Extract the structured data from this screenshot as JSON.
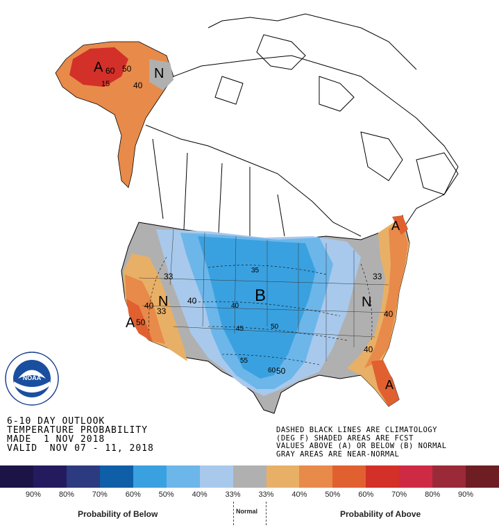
{
  "title": {
    "line1": "6-10 DAY OUTLOOK",
    "line2": "TEMPERATURE PROBABILITY",
    "line3": "MADE  1 NOV 2018",
    "line4": "VALID  NOV 07 - 11, 2018"
  },
  "notes": {
    "line1": "DASHED BLACK LINES ARE CLIMATOLOGY",
    "line2": "(DEG F) SHADED AREAS ARE FCST",
    "line3": "VALUES ABOVE (A) OR BELOW (B) NORMAL",
    "line4": "GRAY AREAS ARE NEAR-NORMAL"
  },
  "logo": {
    "text": "NOAA",
    "ring_text": "NATIONAL OCEANIC AND ATMOSPHERIC ADMINISTRATION · U.S. DEPARTMENT OF COMMERCE"
  },
  "map_labels": {
    "alaska_a": "A",
    "alaska_60": "60",
    "alaska_50": "50",
    "alaska_40": "40",
    "yukon_n": "N",
    "central_b": "B",
    "west_n": "N",
    "calif_a": "A",
    "calif_50": "50",
    "calif_40": "40",
    "west_33": "33",
    "west_33b": "33",
    "nw_40": "40",
    "east_n": "N",
    "east_33": "33",
    "east_40": "40",
    "east_40b": "40",
    "ne_a": "A",
    "fl_a": "A",
    "c35": "35",
    "c40": "40",
    "c45": "45",
    "c50": "50",
    "c55": "55",
    "c60": "60",
    "c50b": "50",
    "nw_15": "15"
  },
  "legend": {
    "colors": [
      "#1c1446",
      "#241b5f",
      "#2c3a7f",
      "#0f5ea8",
      "#3aa1e0",
      "#6cb6ea",
      "#a8c9ec",
      "#b0b0b0",
      "#e8b066",
      "#e88a4a",
      "#e06030",
      "#d23028",
      "#cf2a44",
      "#9b2a38",
      "#6e1e22"
    ],
    "labels": [
      "90%",
      "80%",
      "70%",
      "60%",
      "50%",
      "40%",
      "33%",
      "33%",
      "40%",
      "50%",
      "60%",
      "70%",
      "80%",
      "90%"
    ],
    "below_caption": "Probability of Below",
    "normal_caption": "Normal",
    "above_caption": "Probability of Above"
  }
}
